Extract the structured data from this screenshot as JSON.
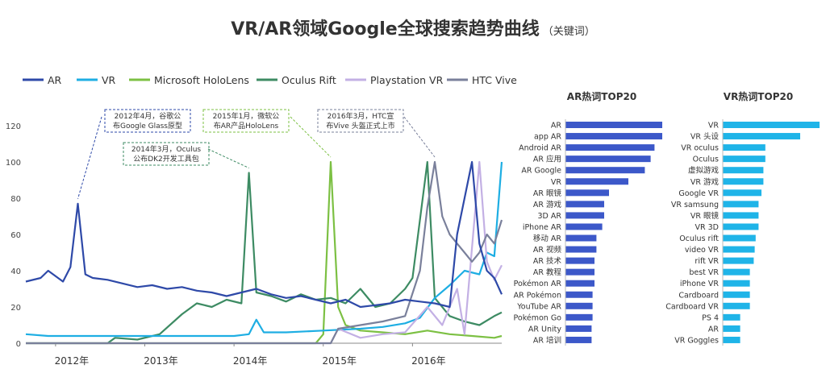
{
  "page": {
    "title": "VR/AR领域Google全球搜索趋势曲线",
    "subtitle": "（关键词）"
  },
  "chart_data": [
    {
      "type": "line",
      "title": "",
      "ylim": [
        0,
        120
      ],
      "y_ticks": [
        0,
        20,
        40,
        60,
        80,
        100,
        120
      ],
      "x_range": [
        "2011-09",
        "2016-12"
      ],
      "x_tick_labels": [
        {
          "label": "2012年",
          "x": "2012-01"
        },
        {
          "label": "2013年",
          "x": "2013-01"
        },
        {
          "label": "2014年",
          "x": "2014-01"
        },
        {
          "label": "2015年",
          "x": "2015-01"
        },
        {
          "label": "2016年",
          "x": "2016-01"
        }
      ],
      "grid": false,
      "legend_position": "top-left",
      "series": [
        {
          "name": "AR",
          "color": "#2E49A8",
          "points": [
            [
              "2011-09",
              34
            ],
            [
              "2011-11",
              36
            ],
            [
              "2011-12",
              40
            ],
            [
              "2012-02",
              34
            ],
            [
              "2012-03",
              42
            ],
            [
              "2012-04",
              77
            ],
            [
              "2012-05",
              38
            ],
            [
              "2012-06",
              36
            ],
            [
              "2012-08",
              35
            ],
            [
              "2012-10",
              33
            ],
            [
              "2012-12",
              31
            ],
            [
              "2013-02",
              32
            ],
            [
              "2013-04",
              30
            ],
            [
              "2013-06",
              31
            ],
            [
              "2013-08",
              29
            ],
            [
              "2013-10",
              28
            ],
            [
              "2013-12",
              26
            ],
            [
              "2014-02",
              28
            ],
            [
              "2014-04",
              30
            ],
            [
              "2014-06",
              27
            ],
            [
              "2014-08",
              25
            ],
            [
              "2014-10",
              26
            ],
            [
              "2014-12",
              24
            ],
            [
              "2015-02",
              22
            ],
            [
              "2015-04",
              24
            ],
            [
              "2015-06",
              20
            ],
            [
              "2015-08",
              21
            ],
            [
              "2015-10",
              22
            ],
            [
              "2015-12",
              24
            ],
            [
              "2016-02",
              23
            ],
            [
              "2016-04",
              22
            ],
            [
              "2016-06",
              20
            ],
            [
              "2016-07",
              60
            ],
            [
              "2016-08",
              80
            ],
            [
              "2016-09",
              100
            ],
            [
              "2016-10",
              55
            ],
            [
              "2016-11",
              40
            ],
            [
              "2016-12",
              36
            ],
            [
              "2017-01",
              27
            ]
          ]
        },
        {
          "name": "VR",
          "color": "#1EAEE3",
          "points": [
            [
              "2011-09",
              5
            ],
            [
              "2011-12",
              4
            ],
            [
              "2012-06",
              4
            ],
            [
              "2013-01",
              4
            ],
            [
              "2013-06",
              4
            ],
            [
              "2014-01",
              4
            ],
            [
              "2014-03",
              5
            ],
            [
              "2014-04",
              13
            ],
            [
              "2014-05",
              6
            ],
            [
              "2014-08",
              6
            ],
            [
              "2015-01",
              7
            ],
            [
              "2015-06",
              8
            ],
            [
              "2015-09",
              9
            ],
            [
              "2015-12",
              11
            ],
            [
              "2016-02",
              14
            ],
            [
              "2016-04",
              25
            ],
            [
              "2016-06",
              32
            ],
            [
              "2016-08",
              40
            ],
            [
              "2016-10",
              38
            ],
            [
              "2016-11",
              50
            ],
            [
              "2016-12",
              48
            ],
            [
              "2017-01",
              100
            ]
          ]
        },
        {
          "name": "Microsoft HoloLens",
          "color": "#7CC043",
          "points": [
            [
              "2011-09",
              0
            ],
            [
              "2014-12",
              0
            ],
            [
              "2015-01",
              5
            ],
            [
              "2015-02",
              100
            ],
            [
              "2015-03",
              20
            ],
            [
              "2015-04",
              10
            ],
            [
              "2015-06",
              7
            ],
            [
              "2015-09",
              6
            ],
            [
              "2015-12",
              5
            ],
            [
              "2016-03",
              7
            ],
            [
              "2016-06",
              5
            ],
            [
              "2016-09",
              4
            ],
            [
              "2016-12",
              3
            ],
            [
              "2017-01",
              4
            ]
          ]
        },
        {
          "name": "Oculus Rift",
          "color": "#3D8B63",
          "points": [
            [
              "2011-09",
              0
            ],
            [
              "2012-08",
              0
            ],
            [
              "2012-09",
              3
            ],
            [
              "2012-12",
              2
            ],
            [
              "2013-03",
              5
            ],
            [
              "2013-06",
              16
            ],
            [
              "2013-08",
              22
            ],
            [
              "2013-10",
              20
            ],
            [
              "2013-12",
              24
            ],
            [
              "2014-02",
              22
            ],
            [
              "2014-03",
              94
            ],
            [
              "2014-04",
              28
            ],
            [
              "2014-06",
              26
            ],
            [
              "2014-08",
              23
            ],
            [
              "2014-10",
              27
            ],
            [
              "2014-12",
              24
            ],
            [
              "2015-02",
              25
            ],
            [
              "2015-04",
              22
            ],
            [
              "2015-06",
              30
            ],
            [
              "2015-08",
              20
            ],
            [
              "2015-10",
              22
            ],
            [
              "2015-12",
              30
            ],
            [
              "2016-01",
              36
            ],
            [
              "2016-03",
              100
            ],
            [
              "2016-04",
              25
            ],
            [
              "2016-06",
              15
            ],
            [
              "2016-08",
              12
            ],
            [
              "2016-10",
              10
            ],
            [
              "2016-12",
              15
            ],
            [
              "2017-01",
              17
            ]
          ]
        },
        {
          "name": "Playstation VR",
          "color": "#C3B0E4",
          "points": [
            [
              "2011-09",
              0
            ],
            [
              "2015-02",
              0
            ],
            [
              "2015-03",
              8
            ],
            [
              "2015-06",
              3
            ],
            [
              "2015-09",
              5
            ],
            [
              "2015-12",
              6
            ],
            [
              "2016-03",
              20
            ],
            [
              "2016-05",
              10
            ],
            [
              "2016-07",
              30
            ],
            [
              "2016-08",
              5
            ],
            [
              "2016-10",
              100
            ],
            [
              "2016-11",
              45
            ],
            [
              "2016-12",
              35
            ],
            [
              "2017-01",
              43
            ]
          ]
        },
        {
          "name": "HTC Vive",
          "color": "#7A809B",
          "points": [
            [
              "2011-09",
              0
            ],
            [
              "2015-02",
              0
            ],
            [
              "2015-03",
              8
            ],
            [
              "2015-06",
              10
            ],
            [
              "2015-09",
              12
            ],
            [
              "2015-12",
              15
            ],
            [
              "2016-02",
              40
            ],
            [
              "2016-03",
              75
            ],
            [
              "2016-04",
              100
            ],
            [
              "2016-05",
              70
            ],
            [
              "2016-06",
              60
            ],
            [
              "2016-07",
              55
            ],
            [
              "2016-08",
              50
            ],
            [
              "2016-09",
              45
            ],
            [
              "2016-10",
              50
            ],
            [
              "2016-11",
              60
            ],
            [
              "2016-12",
              55
            ],
            [
              "2017-01",
              68
            ]
          ]
        }
      ],
      "annotations": [
        {
          "lines": [
            "2012年4月，谷歌公",
            "布Google Glass原型"
          ],
          "target_x": "2012-04",
          "target_y": 77,
          "color": "#2E49A8"
        },
        {
          "lines": [
            "2014年3月，Oculus",
            "公布DK2开发工具包"
          ],
          "target_x": "2014-03",
          "target_y": 94,
          "color": "#3D8B63"
        },
        {
          "lines": [
            "2015年1月，微软公",
            "布AR产品HoloLens"
          ],
          "target_x": "2015-02",
          "target_y": 100,
          "color": "#7CC043"
        },
        {
          "lines": [
            "2016年3月，HTC宣",
            "布Vive 头盔正式上市"
          ],
          "target_x": "2016-04",
          "target_y": 100,
          "color": "#7A809B"
        }
      ]
    },
    {
      "type": "bar",
      "orientation": "horizontal",
      "title": "AR热词TOP20",
      "color": "#3C58C9",
      "categories": [
        "AR",
        "app AR",
        "Android AR",
        "AR 应用",
        "AR Google",
        "VR",
        "AR 眼镜",
        "AR 游戏",
        "3D AR",
        "iPhone AR",
        "移动 AR",
        "AR 视频",
        "AR 技术",
        "AR 教程",
        "Pokémon AR",
        "AR Pokémon",
        "YouTube AR",
        "Pokémon Go",
        "AR Unity",
        "AR 培训"
      ],
      "values": [
        100,
        100,
        92,
        88,
        82,
        65,
        45,
        40,
        40,
        38,
        32,
        32,
        30,
        30,
        30,
        28,
        28,
        28,
        27,
        27
      ]
    },
    {
      "type": "bar",
      "orientation": "horizontal",
      "title": "VR热词TOP20",
      "color": "#1FB4E8",
      "categories": [
        "VR",
        "VR 头设",
        "VR oculus",
        "Oculus",
        "虚拟游戏",
        "VR 游戏",
        "Google VR",
        "VR samsung",
        "VR 眼镜",
        "VR 3D",
        "Oculus rift",
        "video VR",
        "rift VR",
        "best VR",
        "iPhone VR",
        "Cardboard",
        "Cardboard VR",
        "PS 4",
        "AR",
        "VR Goggles"
      ],
      "values": [
        100,
        80,
        44,
        44,
        42,
        42,
        40,
        37,
        37,
        37,
        34,
        33,
        32,
        28,
        28,
        28,
        28,
        18,
        18,
        18
      ]
    }
  ]
}
